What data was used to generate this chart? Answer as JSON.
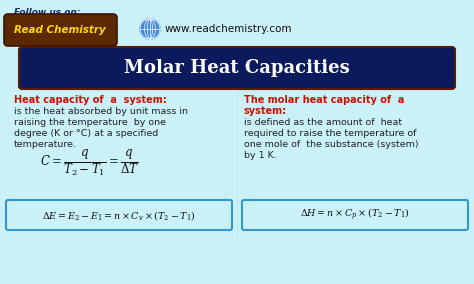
{
  "bg_color": "#caf0f8",
  "title_text": "Molar Heat Capacities",
  "title_bg": "#0a1a5c",
  "title_fg": "white",
  "follow_text": "Follow us on:",
  "url_text": "www.readchemistry.com",
  "left_heading": "Heat capacity of  a  system:",
  "left_body1": "is the heat absorbed by unit mass in",
  "left_body2": "raising the temperature  by one",
  "left_body3": "degree (K or °C) at a specified",
  "left_body4": "temperature.",
  "right_heading1": "The molar heat capacity of  a",
  "right_heading2": "system:",
  "right_body1": "is defined as the amount of  heat",
  "right_body2": "required to raise the temperature of",
  "right_body3": "one mole of  the substance (system)",
  "right_body4": "by 1 K.",
  "formula1": "$C = \\dfrac{q}{T_2 - T_1} = \\dfrac{q}{\\Delta T}$",
  "formula2": "$\\Delta E = E_2 - E_1 = n \\times C_v \\times (T_2 - T_1)$",
  "formula3": "$\\Delta H = n \\times C_p \\times (T_2 - T_1)$",
  "heading_color": "#cc1100",
  "body_color": "#222222",
  "box_border_color": "#3399cc",
  "logo_bg": "#5c2800",
  "logo_fg": "#ffd700",
  "title_border": "#5c1a00",
  "follow_color": "#1a2a6c"
}
